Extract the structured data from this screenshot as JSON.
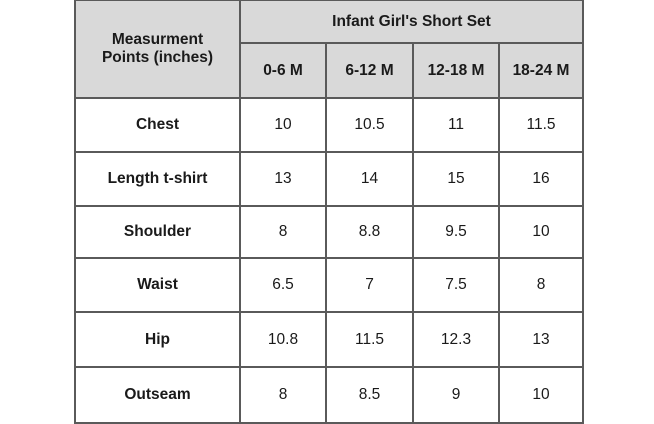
{
  "table": {
    "corner": "Measurment Points (inches)",
    "title": "Infant Girl's Short Set",
    "sizes": [
      "0-6 M",
      "6-12 M",
      "12-18 M",
      "18-24 M"
    ],
    "rows": [
      [
        "Chest",
        10,
        10.5,
        11,
        11.5
      ],
      [
        "Length t-shirt",
        13,
        14,
        15,
        16
      ],
      [
        "Shoulder",
        8,
        8.8,
        9.5,
        10
      ],
      [
        "Waist",
        6.5,
        7,
        7.5,
        8
      ],
      [
        "Hip",
        10.8,
        11.5,
        12.3,
        13
      ],
      [
        "Outseam",
        8,
        8.5,
        9,
        10
      ]
    ]
  }
}
